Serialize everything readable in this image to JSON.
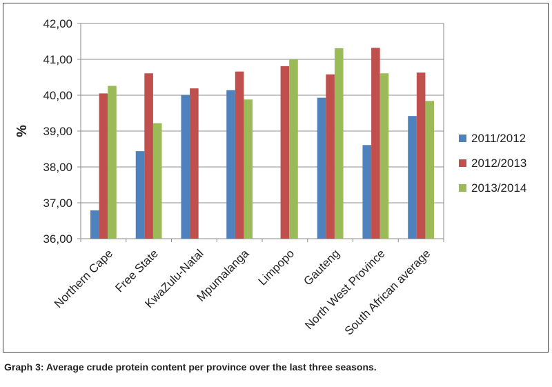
{
  "chart_data": {
    "type": "bar",
    "categories": [
      "Northern Cape",
      "Free State",
      "KwaZulu-Natal",
      "Mpumalanga",
      "Limpopo",
      "Gauteng",
      "North West Province",
      "South African average"
    ],
    "series": [
      {
        "name": "2011/2012",
        "color": "#4f81bd",
        "values": [
          36.79,
          38.44,
          40.01,
          40.14,
          null,
          39.93,
          38.61,
          39.42
        ]
      },
      {
        "name": "2012/2013",
        "color": "#c0504d",
        "values": [
          40.05,
          40.61,
          40.19,
          40.66,
          40.81,
          40.58,
          41.32,
          40.63
        ]
      },
      {
        "name": "2013/2014",
        "color": "#9bbb59",
        "values": [
          40.26,
          39.22,
          null,
          39.88,
          41.0,
          41.31,
          40.61,
          39.84
        ]
      }
    ],
    "ylabel": "%",
    "ylim": [
      36,
      42
    ],
    "yticks": [
      "36,00",
      "37,00",
      "38,00",
      "39,00",
      "40,00",
      "41,00",
      "42,00"
    ],
    "ytick_values": [
      36,
      37,
      38,
      39,
      40,
      41,
      42
    ],
    "grid": true,
    "legend": "right"
  },
  "caption": "Graph 3: Average crude protein content per province over the last three seasons."
}
